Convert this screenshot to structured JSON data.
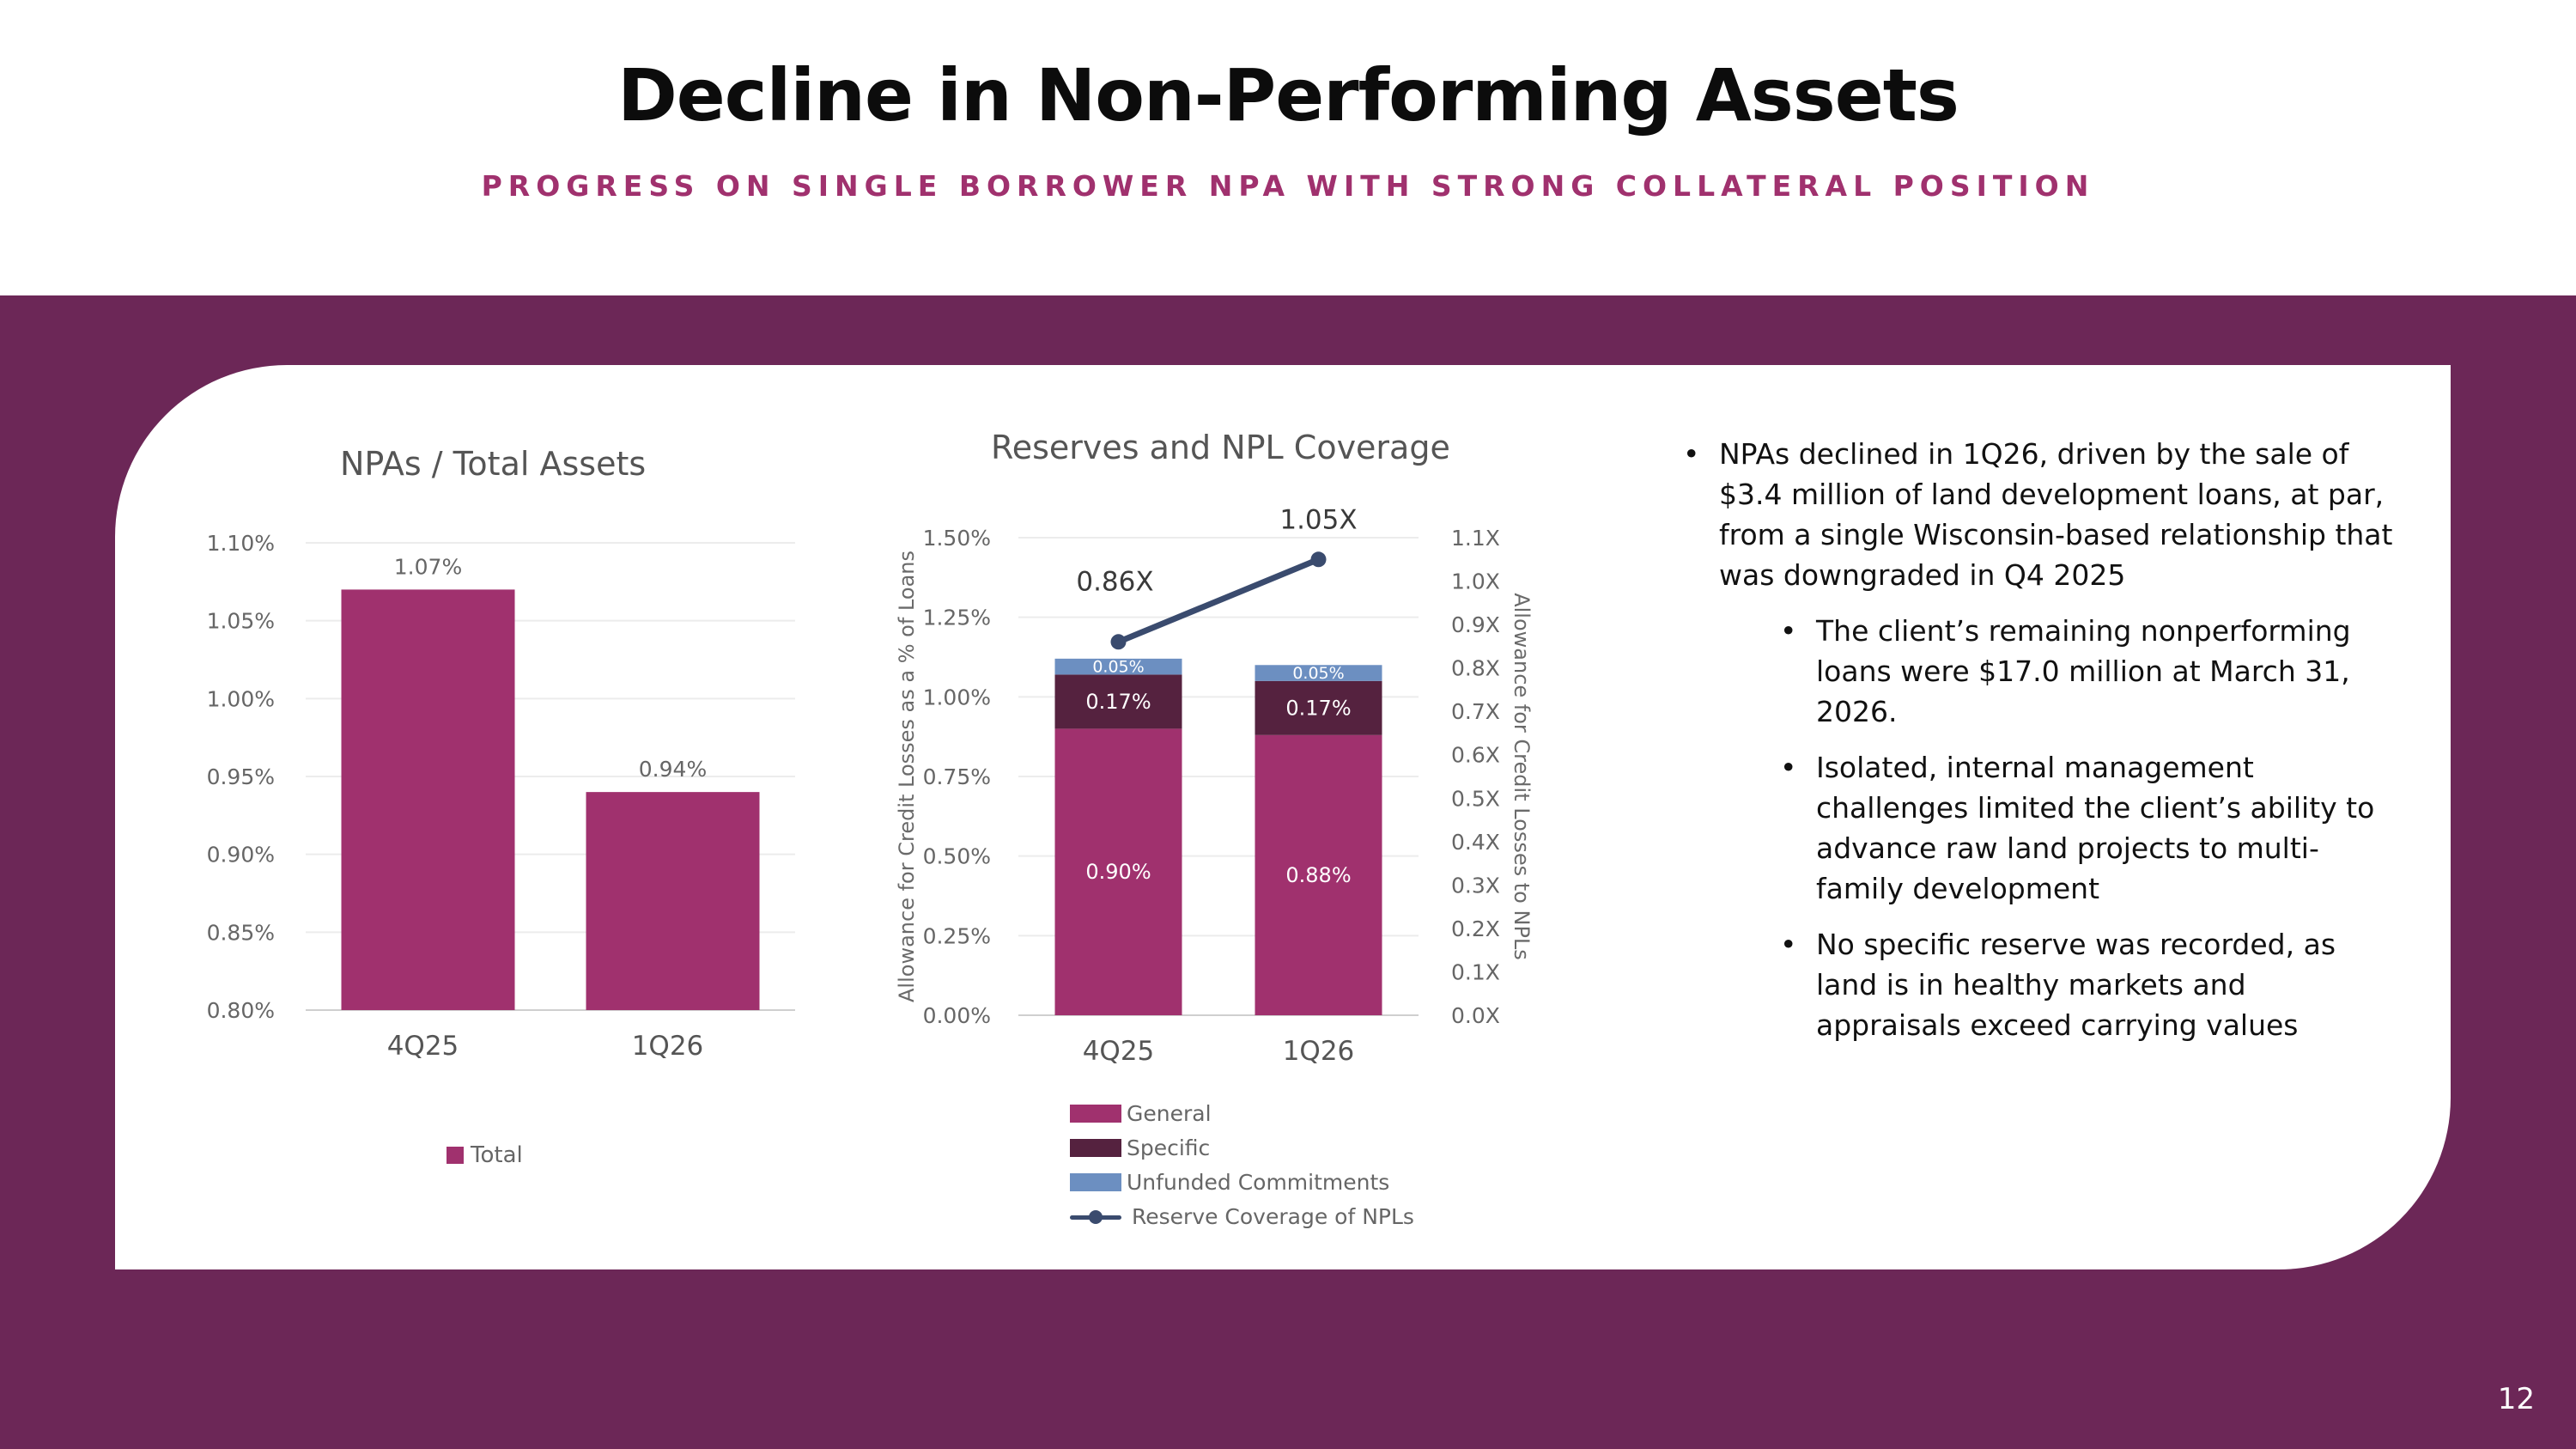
{
  "title": "Decline in Non-Performing Assets",
  "subtitle": "PROGRESS ON SINGLE BORROWER NPA WITH STRONG COLLATERAL POSITION",
  "page_number": "12",
  "colors": {
    "band": "#6c2757",
    "general": "#a0316e",
    "specific": "#55223f",
    "unfunded": "#6c8fc1",
    "coverage_line": "#3a4b6e"
  },
  "chart_data": [
    {
      "type": "bar",
      "title": "NPAs / Total Assets",
      "categories": [
        "4Q25",
        "1Q26"
      ],
      "series": [
        {
          "name": "Total",
          "values": [
            1.07,
            0.94
          ]
        }
      ],
      "data_labels": [
        "1.07%",
        "0.94%"
      ],
      "ylim": [
        0.8,
        1.1
      ],
      "yticks": [
        "0.80%",
        "0.85%",
        "0.90%",
        "0.95%",
        "1.00%",
        "1.05%",
        "1.10%"
      ],
      "grid": true,
      "legend": "bottom"
    },
    {
      "type": "bar",
      "stacked": true,
      "title": "Reserves and NPL Coverage",
      "categories": [
        "4Q25",
        "1Q26"
      ],
      "series": [
        {
          "name": "General",
          "values": [
            0.9,
            0.88
          ],
          "labels": [
            "0.90%",
            "0.88%"
          ]
        },
        {
          "name": "Specific",
          "values": [
            0.17,
            0.17
          ],
          "labels": [
            "0.17%",
            "0.17%"
          ]
        },
        {
          "name": "Unfunded Commitments",
          "values": [
            0.05,
            0.05
          ],
          "labels": [
            "0.05%",
            "0.05%"
          ]
        }
      ],
      "line_series": {
        "name": "Reserve Coverage of NPLs",
        "values": [
          0.86,
          1.05
        ],
        "labels": [
          "0.86X",
          "1.05X"
        ],
        "axis": "secondary"
      },
      "ylabel": "Allowance for Credit Losses as a % of Loans",
      "y2label": "Allowance for Credit Losses to NPLs",
      "ylim": [
        0,
        1.5
      ],
      "yticks": [
        "0.00%",
        "0.25%",
        "0.50%",
        "0.75%",
        "1.00%",
        "1.25%",
        "1.50%"
      ],
      "y2lim": [
        0,
        1.1
      ],
      "y2ticks": [
        "0.0X",
        "0.1X",
        "0.2X",
        "0.3X",
        "0.4X",
        "0.5X",
        "0.6X",
        "0.7X",
        "0.8X",
        "0.9X",
        "1.0X",
        "1.1X"
      ],
      "grid": true,
      "legend": "bottom"
    }
  ],
  "bullets": [
    {
      "level": 1,
      "text": "NPAs declined in 1Q26, driven by the sale of $3.4 million of land development loans, at par, from a single Wisconsin-based relationship that was downgraded in Q4 2025"
    },
    {
      "level": 2,
      "text": "The client’s remaining nonperforming loans were $17.0 million at March 31, 2026."
    },
    {
      "level": 2,
      "text": "Isolated, internal management challenges limited the client’s ability to advance raw land projects to multi-family development"
    },
    {
      "level": 2,
      "text": "No specific reserve was recorded, as land is in healthy markets and appraisals exceed carrying values"
    }
  ]
}
